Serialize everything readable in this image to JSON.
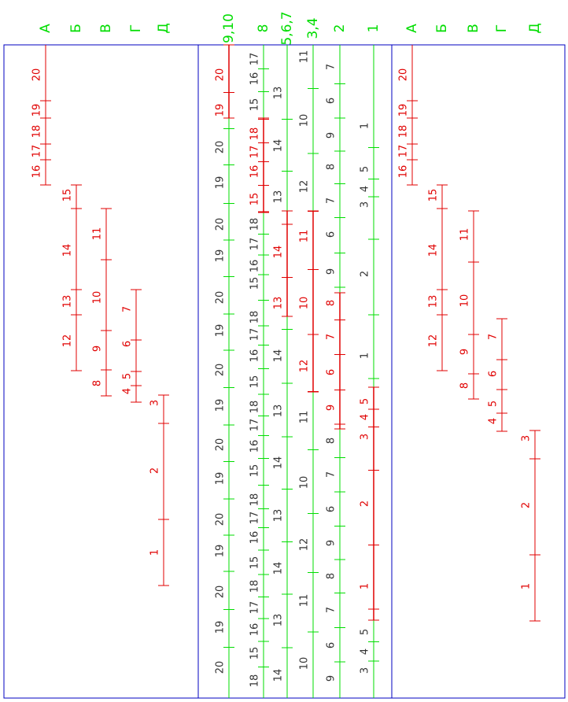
{
  "panels": [
    {
      "columns": [
        {
          "header": "А",
          "labels": [
            "20",
            "19",
            "18",
            "17",
            "16"
          ]
        },
        {
          "header": "Б",
          "labels": [
            "15",
            "14",
            "13",
            "12"
          ]
        },
        {
          "header": "В",
          "labels": [
            "11",
            "10",
            "9",
            "8"
          ]
        },
        {
          "header": "Г",
          "labels": [
            "7",
            "6",
            "5",
            "4"
          ]
        },
        {
          "header": "Д",
          "labels": [
            "3",
            "2",
            "1"
          ]
        }
      ]
    },
    {
      "columns": [
        {
          "header": "9,10",
          "labels": [
            "20",
            "19",
            "20",
            "19",
            "20",
            "19",
            "20",
            "19",
            "20",
            "19",
            "20",
            "19",
            "20",
            "19",
            "20",
            "19",
            "20"
          ]
        },
        {
          "header": "8",
          "labels": [
            "17",
            "16",
            "15",
            "18",
            "17",
            "16",
            "15",
            "18",
            "17",
            "16",
            "15",
            "18",
            "17",
            "16",
            "15",
            "18",
            "17",
            "16",
            "15",
            "18",
            "17",
            "16",
            "15",
            "18",
            "17",
            "16",
            "15",
            "18"
          ]
        },
        {
          "header": "5,6,7",
          "labels": [
            "13",
            "14",
            "13",
            "14",
            "13",
            "14",
            "13",
            "14",
            "13",
            "14",
            "13",
            "14"
          ]
        },
        {
          "header": "3,4",
          "labels": [
            "11",
            "10",
            "12",
            "11",
            "10",
            "12",
            "11",
            "10",
            "12",
            "11",
            "10"
          ]
        },
        {
          "header": "2",
          "labels": [
            "7",
            "6",
            "9",
            "8",
            "7",
            "6",
            "9",
            "8",
            "7",
            "6",
            "9",
            "8",
            "7",
            "6",
            "9",
            "8",
            "7",
            "6",
            "9"
          ]
        },
        {
          "header": "1",
          "labels": [
            "1",
            "5",
            "4",
            "3",
            "2",
            "1",
            "5",
            "4",
            "3",
            "2",
            "1",
            "5",
            "4",
            "3"
          ]
        }
      ]
    },
    {
      "columns": [
        {
          "header": "А",
          "labels": [
            "20",
            "19",
            "18",
            "17",
            "16"
          ]
        },
        {
          "header": "Б",
          "labels": [
            "15",
            "14",
            "13",
            "12"
          ]
        },
        {
          "header": "В",
          "labels": [
            "11",
            "10",
            "9",
            "8"
          ]
        },
        {
          "header": "Г",
          "labels": [
            "7",
            "6",
            "5",
            "4"
          ]
        },
        {
          "header": "Д",
          "labels": [
            "3",
            "2",
            "1"
          ]
        }
      ]
    }
  ]
}
